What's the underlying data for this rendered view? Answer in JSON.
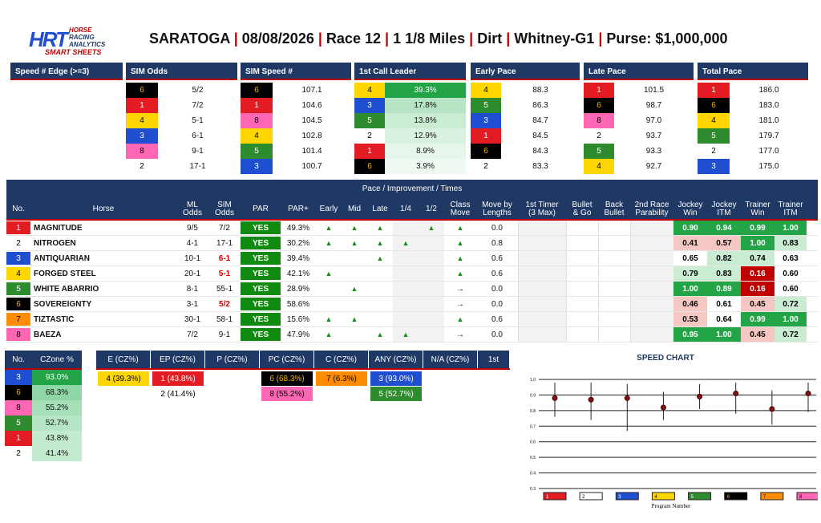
{
  "brand": {
    "line1": "HORSE",
    "line2": "RACING",
    "line3": "ANALYTICS",
    "line4": "SMART SHEETS",
    "mark": "HRT"
  },
  "header": {
    "track": "SARATOGA",
    "date": "08/08/2026",
    "race": "Race 12",
    "distance": "1 1/8 Miles",
    "surface": "Dirt",
    "stake": "Whitney-G1",
    "purse": "Purse: $1,000,000"
  },
  "top_panels": {
    "edge": {
      "title": "Speed # Edge (>=3)"
    },
    "sim_odds": {
      "title": "SIM Odds",
      "rows": [
        [
          "6",
          "5/2"
        ],
        [
          "1",
          "7/2"
        ],
        [
          "4",
          "5-1"
        ],
        [
          "3",
          "6-1"
        ],
        [
          "8",
          "9-1"
        ],
        [
          "2",
          "17-1"
        ]
      ]
    },
    "sim_speed": {
      "title": "SIM Speed #",
      "rows": [
        [
          "6",
          "107.1"
        ],
        [
          "1",
          "104.6"
        ],
        [
          "8",
          "104.5"
        ],
        [
          "4",
          "102.8"
        ],
        [
          "5",
          "101.4"
        ],
        [
          "3",
          "100.7"
        ]
      ]
    },
    "call_leader": {
      "title": "1st Call Leader",
      "rows": [
        [
          "4",
          "39.3%"
        ],
        [
          "3",
          "17.8%"
        ],
        [
          "5",
          "13.8%"
        ],
        [
          "2",
          "12.9%"
        ],
        [
          "1",
          "8.9%"
        ],
        [
          "6",
          "3.9%"
        ]
      ]
    },
    "early": {
      "title": "Early Pace",
      "rows": [
        [
          "4",
          "88.3"
        ],
        [
          "5",
          "86.3"
        ],
        [
          "3",
          "84.7"
        ],
        [
          "1",
          "84.5"
        ],
        [
          "6",
          "84.3"
        ],
        [
          "2",
          "83.3"
        ]
      ]
    },
    "late": {
      "title": "Late Pace",
      "rows": [
        [
          "1",
          "101.5"
        ],
        [
          "6",
          "98.7"
        ],
        [
          "8",
          "97.0"
        ],
        [
          "2",
          "93.7"
        ],
        [
          "5",
          "93.3"
        ],
        [
          "4",
          "92.7"
        ]
      ]
    },
    "total": {
      "title": "Total Pace",
      "rows": [
        [
          "1",
          "186.0"
        ],
        [
          "6",
          "183.0"
        ],
        [
          "4",
          "181.0"
        ],
        [
          "5",
          "179.7"
        ],
        [
          "2",
          "177.0"
        ],
        [
          "3",
          "175.0"
        ]
      ]
    }
  },
  "main": {
    "band": "Pace / Improvement / Times",
    "cols": {
      "no": "No.",
      "horse": "Horse",
      "ml": "ML\nOdds",
      "sim": "SIM\nOdds",
      "par": "PAR",
      "parp": "PAR+",
      "early": "Early",
      "mid": "Mid",
      "late": "Late",
      "q": "1/4",
      "h": "1/2",
      "cm": "Class\nMove",
      "mbl": "Move by\nLengths",
      "ft": "1st Timer\n(3 Max)",
      "bg": "Bullet\n& Go",
      "bb": "Back\nBullet",
      "sr": "2nd Race\nParability",
      "jw": "Jockey\nWin",
      "ji": "Jockey\nITM",
      "tw": "Trainer\nWin",
      "ti": "Trainer\nITM"
    },
    "rows": [
      {
        "no": "1",
        "horse": "MAGNITUDE",
        "ml": "9/5",
        "sim": "7/2",
        "simred": false,
        "par": "YES",
        "parp": "49.3%",
        "e": 1,
        "m": 1,
        "l": 1,
        "q": 0,
        "h": 1,
        "cm": "up",
        "mbl": "0.0",
        "jw": "0.90",
        "ji": "0.94",
        "tw": "0.99",
        "ti": "1.00"
      },
      {
        "no": "2",
        "horse": "NITROGEN",
        "ml": "4-1",
        "sim": "17-1",
        "simred": false,
        "par": "YES",
        "parp": "30.2%",
        "e": 1,
        "m": 1,
        "l": 1,
        "q": 1,
        "h": 0,
        "cm": "up",
        "mbl": "0.8",
        "jw": "0.41",
        "ji": "0.57",
        "tw": "1.00",
        "ti": "0.83"
      },
      {
        "no": "3",
        "horse": "ANTIQUARIAN",
        "ml": "10-1",
        "sim": "6-1",
        "simred": true,
        "par": "YES",
        "parp": "39.4%",
        "e": 0,
        "m": 0,
        "l": 1,
        "q": 0,
        "h": 0,
        "cm": "up",
        "mbl": "0.6",
        "jw": "0.65",
        "ji": "0.82",
        "tw": "0.74",
        "ti": "0.63"
      },
      {
        "no": "4",
        "horse": "FORGED STEEL",
        "ml": "20-1",
        "sim": "5-1",
        "simred": true,
        "par": "YES",
        "parp": "42.1%",
        "e": 1,
        "m": 0,
        "l": 0,
        "q": 0,
        "h": 0,
        "cm": "up",
        "mbl": "0.6",
        "jw": "0.79",
        "ji": "0.83",
        "tw": "0.16",
        "ti": "0.60"
      },
      {
        "no": "5",
        "horse": "WHITE ABARRIO",
        "ml": "8-1",
        "sim": "55-1",
        "simred": false,
        "par": "YES",
        "parp": "28.9%",
        "e": 0,
        "m": 1,
        "l": 0,
        "q": 0,
        "h": 0,
        "cm": "right",
        "mbl": "0.0",
        "jw": "1.00",
        "ji": "0.89",
        "tw": "0.16",
        "ti": "0.60"
      },
      {
        "no": "6",
        "horse": "SOVEREIGNTY",
        "ml": "3-1",
        "sim": "5/2",
        "simred": true,
        "par": "YES",
        "parp": "58.6%",
        "e": 0,
        "m": 0,
        "l": 0,
        "q": 0,
        "h": 0,
        "cm": "right",
        "mbl": "0.0",
        "jw": "0.46",
        "ji": "0.61",
        "tw": "0.45",
        "ti": "0.72"
      },
      {
        "no": "7",
        "horse": "TIZTASTIC",
        "ml": "30-1",
        "sim": "58-1",
        "simred": false,
        "par": "YES",
        "parp": "15.6%",
        "e": 1,
        "m": 1,
        "l": 0,
        "q": 0,
        "h": 0,
        "cm": "up",
        "mbl": "0.6",
        "jw": "0.53",
        "ji": "0.64",
        "tw": "0.99",
        "ti": "1.00"
      },
      {
        "no": "8",
        "horse": "BAEZA",
        "ml": "7/2",
        "sim": "9-1",
        "simred": false,
        "par": "YES",
        "parp": "47.9%",
        "e": 1,
        "m": 0,
        "l": 1,
        "q": 1,
        "h": 0,
        "cm": "right",
        "mbl": "0.0",
        "jw": "0.95",
        "ji": "1.00",
        "tw": "0.45",
        "ti": "0.72"
      }
    ],
    "up_glyph": "▲",
    "right_glyph": "→"
  },
  "czone": {
    "h_no": "No.",
    "h_pct": "CZone %",
    "rows": [
      [
        "3",
        "93.0%"
      ],
      [
        "6",
        "68.3%"
      ],
      [
        "8",
        "55.2%"
      ],
      [
        "5",
        "52.7%"
      ],
      [
        "1",
        "43.8%"
      ],
      [
        "2",
        "41.4%"
      ]
    ]
  },
  "cz_cats": {
    "headers": [
      "E (CZ%)",
      "EP (CZ%)",
      "P (CZ%)",
      "PC (CZ%)",
      "C (CZ%)",
      "ANY (CZ%)",
      "N/A (CZ%)",
      "1st"
    ],
    "cells": [
      [
        {
          "t": "4 (39.3%)",
          "c": "4"
        }
      ],
      [
        {
          "t": "1 (43.8%)",
          "c": "1"
        },
        {
          "t": "2 (41.4%)",
          "c": "2"
        }
      ],
      [],
      [
        {
          "t": "6 (68.3%)",
          "c": "6"
        },
        {
          "t": "8 (55.2%)",
          "c": "8"
        }
      ],
      [
        {
          "t": "7 (6.3%)",
          "c": "7"
        }
      ],
      [
        {
          "t": "3 (93.0%)",
          "c": "3"
        },
        {
          "t": "5 (52.7%)",
          "c": "5"
        }
      ],
      [],
      []
    ]
  },
  "chart_data": {
    "type": "scatter",
    "title": "SPEED CHART",
    "xlabel": "Program Number",
    "ylabel": "",
    "ylim": [
      0.3,
      1.0
    ],
    "yticks": [
      "1.0",
      "0.9",
      "0.8",
      "0.7",
      "0.6",
      "0.5",
      "0.4",
      "0.3"
    ],
    "x": [
      "1",
      "2",
      "3",
      "4",
      "5",
      "6",
      "7",
      "8"
    ],
    "points": [
      {
        "x": "1",
        "y": 0.88,
        "lo": 0.76,
        "hi": 0.98
      },
      {
        "x": "2",
        "y": 0.87,
        "lo": 0.74,
        "hi": 0.98
      },
      {
        "x": "3",
        "y": 0.88,
        "lo": 0.67,
        "hi": 0.97
      },
      {
        "x": "4",
        "y": 0.82,
        "lo": 0.74,
        "hi": 0.92
      },
      {
        "x": "5",
        "y": 0.89,
        "lo": 0.81,
        "hi": 0.97
      },
      {
        "x": "6",
        "y": 0.91,
        "lo": 0.78,
        "hi": 0.98
      },
      {
        "x": "7",
        "y": 0.81,
        "lo": 0.71,
        "hi": 0.93
      },
      {
        "x": "8",
        "y": 0.91,
        "lo": 0.79,
        "hi": 0.98
      }
    ]
  }
}
